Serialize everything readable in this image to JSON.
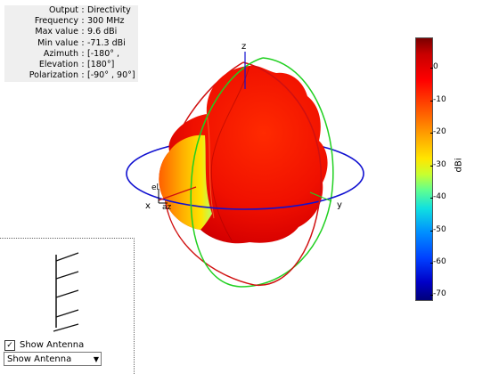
{
  "info": [
    {
      "key": "Output",
      "value": "Directivity"
    },
    {
      "key": "Frequency",
      "value": "300 MHz"
    },
    {
      "key": "Max value",
      "value": "9.6 dBi"
    },
    {
      "key": "Min value",
      "value": "-71.3 dBi"
    },
    {
      "key": "Azimuth",
      "value": "[-180° ,"
    },
    {
      "key": "Elevation",
      "value": "[180°]"
    },
    {
      "key": "Polarization",
      "value": "[-90° , 90°]"
    }
  ],
  "axes": {
    "x": "x",
    "y": "y",
    "z": "z",
    "el": "el",
    "az": "az"
  },
  "colorbar": {
    "unit": "dBi",
    "ticks": [
      "0",
      "-10",
      "-20",
      "-30",
      "-40",
      "-50",
      "-60",
      "-70"
    ],
    "max": 9.6,
    "min": -71.3
  },
  "controls": {
    "checkbox_label": "Show Antenna",
    "checkbox_checked": true,
    "dropdown_value": "Show Antenna"
  },
  "colors": {
    "azimuth_ring": "#1010d0",
    "elevation_ring": "#d01010",
    "green_ring": "#20d020"
  }
}
